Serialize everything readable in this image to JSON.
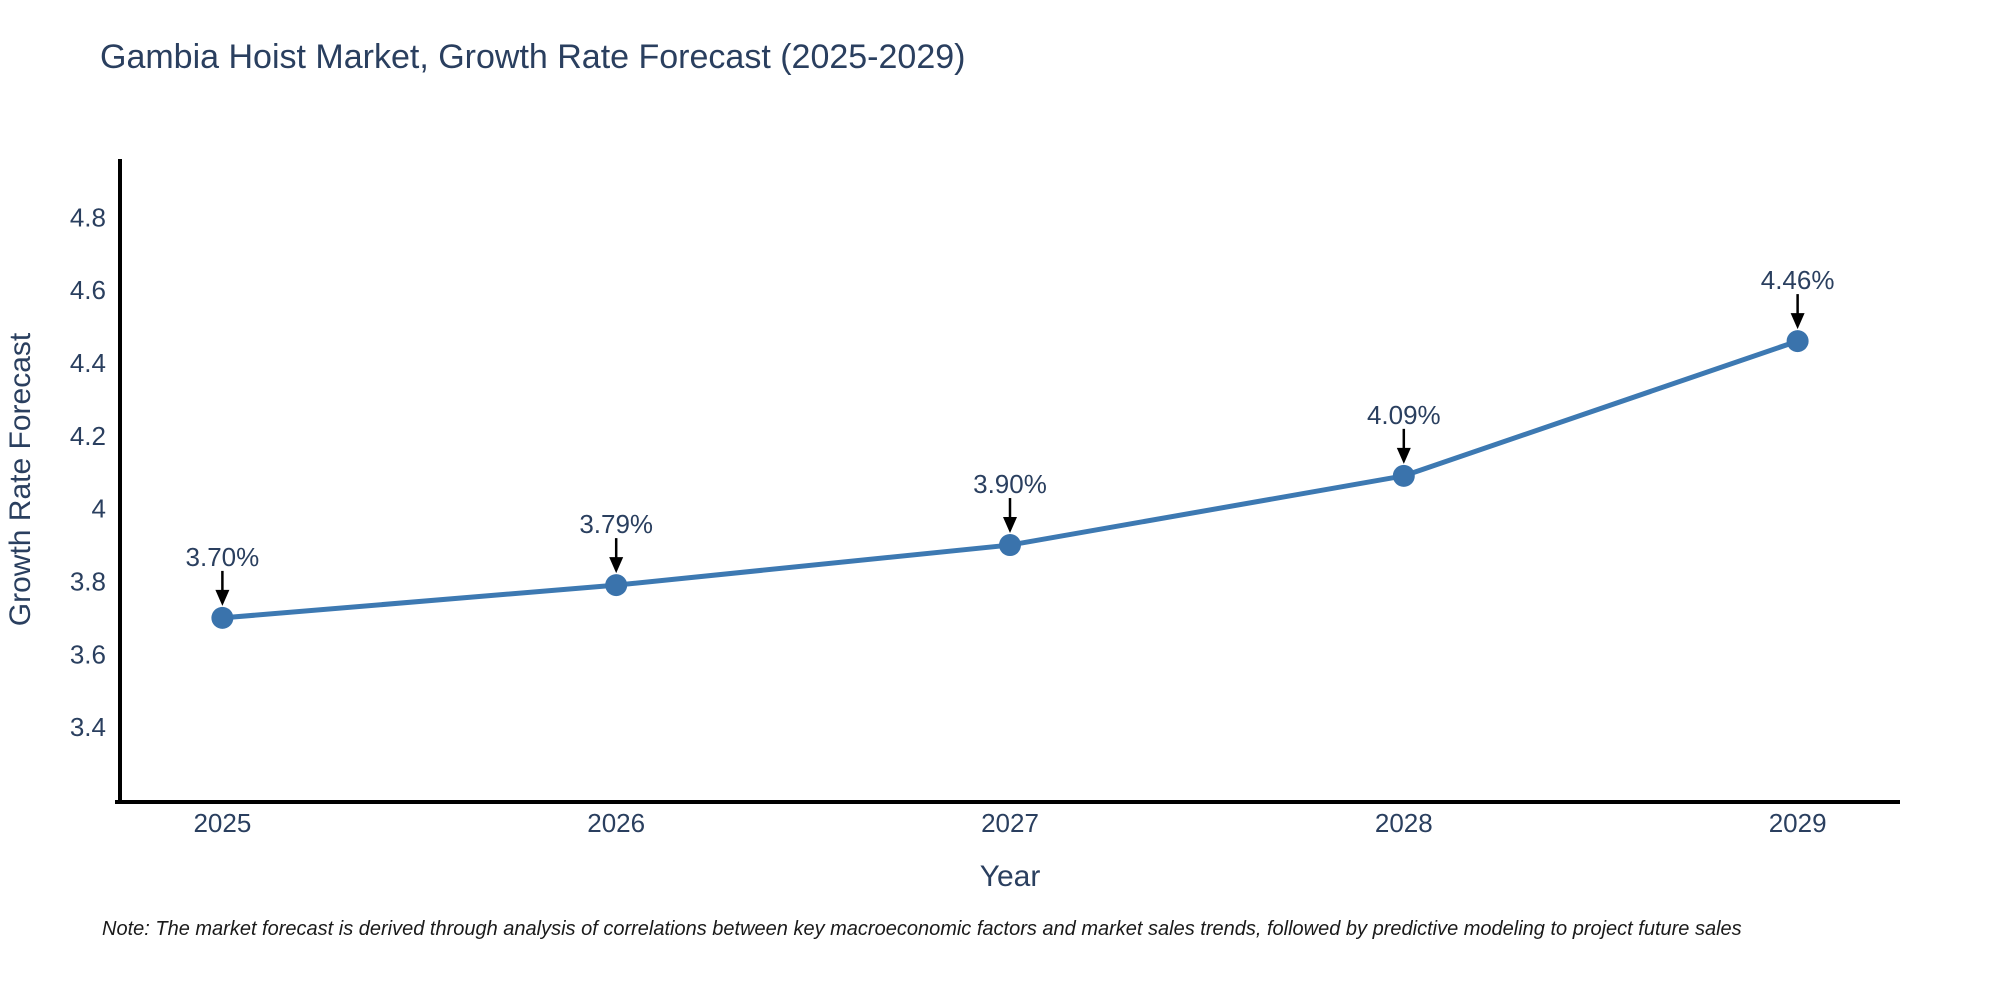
{
  "title": {
    "text": "Gambia Hoist Market, Growth Rate Forecast (2025-2029)",
    "color": "#2a3f5f"
  },
  "chart_data": {
    "type": "line",
    "title": "Gambia Hoist Market, Growth Rate Forecast (2025-2029)",
    "xlabel": "Year",
    "ylabel": "Growth Rate Forecast",
    "x": [
      2025,
      2026,
      2027,
      2028,
      2029
    ],
    "series": [
      {
        "name": "Growth Rate Forecast",
        "values": [
          3.7,
          3.79,
          3.9,
          4.09,
          4.46
        ]
      }
    ],
    "point_labels": [
      "3.70%",
      "3.79%",
      "3.90%",
      "4.09%",
      "4.46%"
    ],
    "xticks": [
      2025,
      2026,
      2027,
      2028,
      2029
    ],
    "yticks": [
      3.4,
      3.6,
      3.8,
      4,
      4.2,
      4.4,
      4.6,
      4.8
    ],
    "xlim": [
      2024.74,
      2029.26
    ],
    "ylim": [
      3.2,
      4.96
    ],
    "grid": false,
    "legend": "none",
    "line_color": "#3d79b2",
    "marker_color": "#3a73ac",
    "axis_color": "#000000",
    "tick_label_color": "#2a3f5f",
    "annotation_color": "#2a3f5f",
    "arrow_color": "#000000"
  },
  "note": {
    "text": "Note: The market forecast is derived through analysis of correlations between key macroeconomic factors and market sales trends, followed by predictive modeling to project future sales"
  }
}
